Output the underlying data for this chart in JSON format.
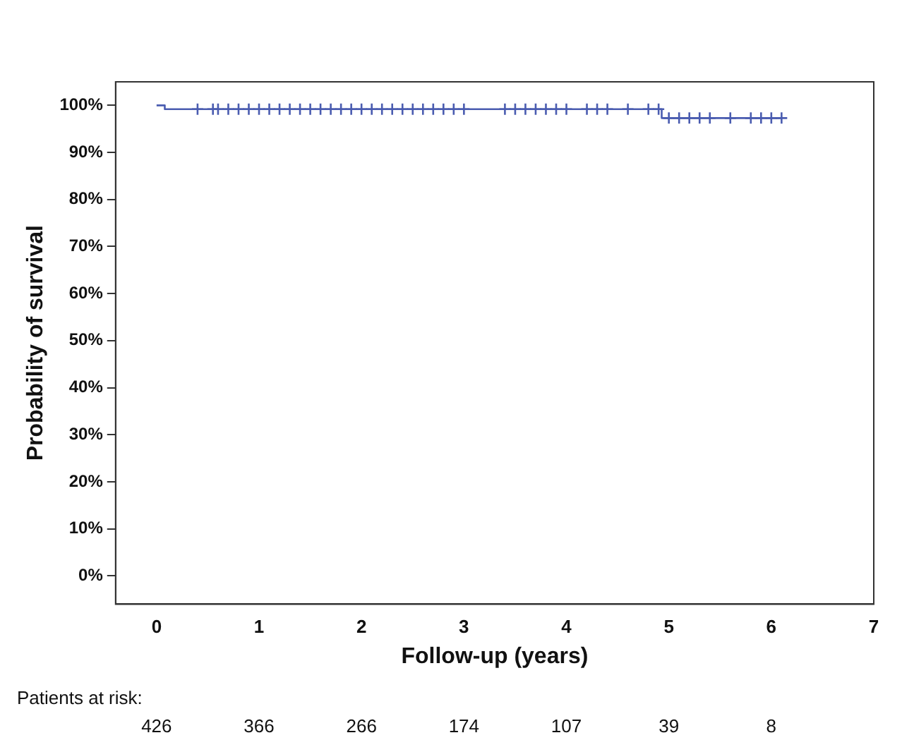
{
  "chart_data": {
    "type": "step",
    "xlabel": "Follow-up (years)",
    "ylabel": "Probability of survival",
    "xlim": [
      -0.4,
      7
    ],
    "xticks": [
      0,
      1,
      2,
      3,
      4,
      5,
      6,
      7
    ],
    "ylim": [
      -6,
      105
    ],
    "yticks": [
      {
        "value": 0,
        "label": "0%"
      },
      {
        "value": 10,
        "label": "10%"
      },
      {
        "value": 20,
        "label": "20%"
      },
      {
        "value": 30,
        "label": "30%"
      },
      {
        "value": 40,
        "label": "40%"
      },
      {
        "value": 50,
        "label": "50%"
      },
      {
        "value": 60,
        "label": "60%"
      },
      {
        "value": 70,
        "label": "70%"
      },
      {
        "value": 80,
        "label": "80%"
      },
      {
        "value": 90,
        "label": "90%"
      },
      {
        "value": 100,
        "label": "100%"
      }
    ],
    "grid": false,
    "legend": false,
    "series": [
      {
        "color": "#4a5cb0",
        "x": [
          0,
          0.08,
          4.93,
          6.1
        ],
        "values": [
          100,
          99.2,
          97.3,
          97.3
        ]
      },
      {
        "type": "scatter",
        "marker": "cross",
        "color": "#4a5cb0",
        "x": [
          0.4,
          0.55,
          0.6,
          0.7,
          0.8,
          0.9,
          1.0,
          1.1,
          1.2,
          1.3,
          1.4,
          1.5,
          1.6,
          1.7,
          1.8,
          1.9,
          2.0,
          2.1,
          2.2,
          2.3,
          2.4,
          2.5,
          2.6,
          2.7,
          2.8,
          2.9,
          3.0,
          3.4,
          3.5,
          3.6,
          3.7,
          3.8,
          3.9,
          4.0,
          4.2,
          4.3,
          4.4,
          4.6,
          4.8,
          4.9,
          5.0,
          5.1,
          5.2,
          5.3,
          5.4,
          5.6,
          5.8,
          5.9,
          6.0,
          6.1
        ],
        "values": [
          99.2,
          99.2,
          99.2,
          99.2,
          99.2,
          99.2,
          99.2,
          99.2,
          99.2,
          99.2,
          99.2,
          99.2,
          99.2,
          99.2,
          99.2,
          99.2,
          99.2,
          99.2,
          99.2,
          99.2,
          99.2,
          99.2,
          99.2,
          99.2,
          99.2,
          99.2,
          99.2,
          99.2,
          99.2,
          99.2,
          99.2,
          99.2,
          99.2,
          99.2,
          99.2,
          99.2,
          99.2,
          99.2,
          99.2,
          99.2,
          97.3,
          97.3,
          97.3,
          97.3,
          97.3,
          97.3,
          97.3,
          97.3,
          97.3,
          97.3
        ]
      }
    ],
    "annotations": [
      "Patients at risk:",
      "426",
      "366",
      "266",
      "174",
      "107",
      "39",
      "8"
    ]
  }
}
